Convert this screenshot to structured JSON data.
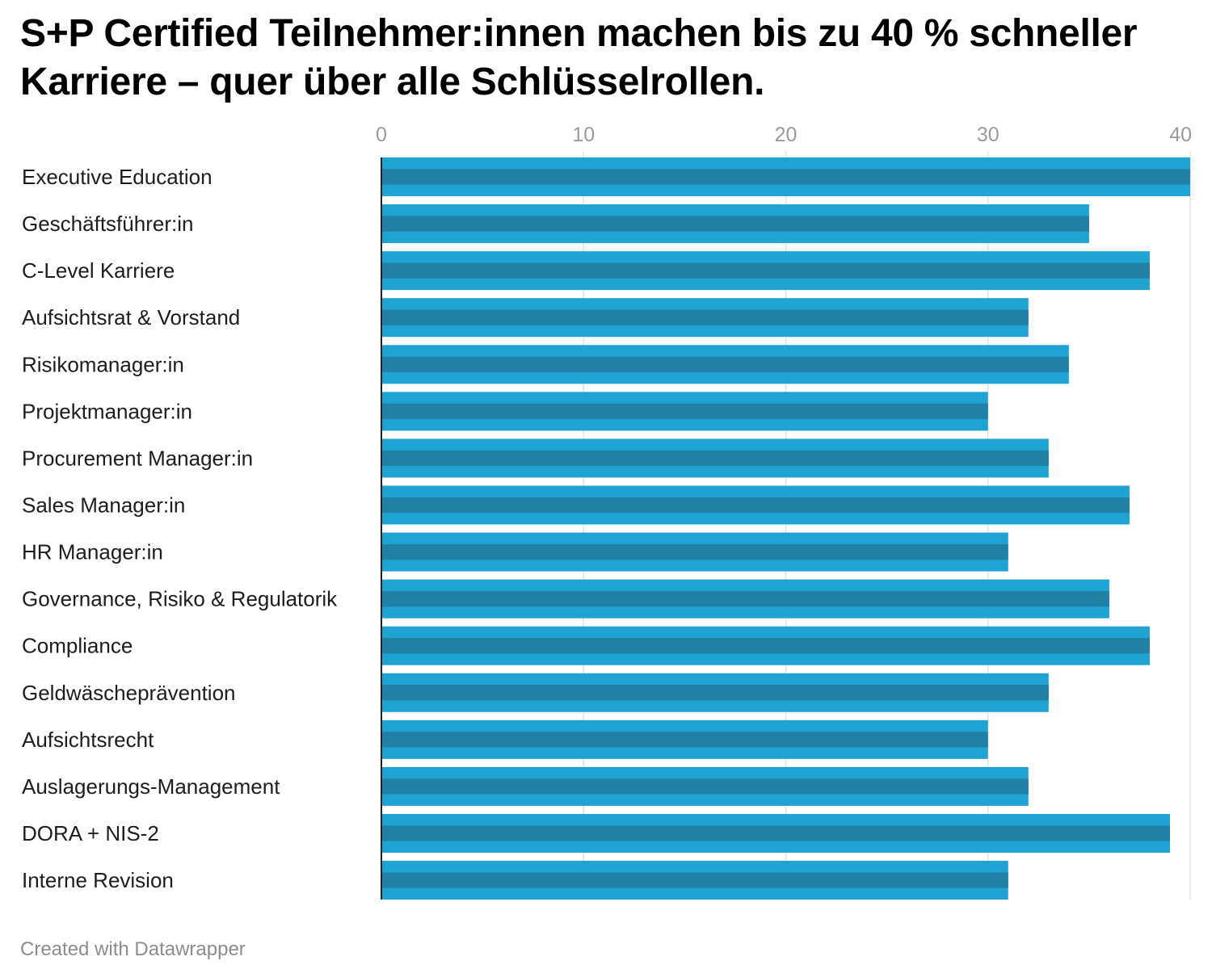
{
  "title": "S+P Certified Teilnehmer:innen machen bis zu 40 % schneller Karriere – quer über alle Schlüsselrollen.",
  "footer": "Created with Datawrapper",
  "colors": {
    "bar_main": "#1ea3d2",
    "bar_stripe": "#2180a6",
    "axis": "#1d1d1d",
    "grid": "#e3e3e3",
    "tick_label": "#9a9a9a",
    "category_label": "#1d1d1d"
  },
  "chart_data": {
    "type": "bar",
    "orientation": "horizontal",
    "title": "S+P Certified Teilnehmer:innen machen bis zu 40 % schneller Karriere – quer über alle Schlüsselrollen.",
    "xlabel": "",
    "ylabel": "",
    "xlim": [
      0,
      40
    ],
    "ticks": [
      "0",
      "10",
      "20",
      "30",
      "40"
    ],
    "tick_values": [
      0,
      10,
      20,
      30,
      40
    ],
    "tick_position": "top",
    "grid": true,
    "legend": "none",
    "categories": [
      "Executive Education",
      "Geschäftsführer:in",
      "C-Level Karriere",
      "Aufsichtsrat & Vorstand",
      "Risikomanager:in",
      "Projektmanager:in",
      "Procurement Manager:in",
      "Sales Manager:in",
      "HR Manager:in",
      "Governance, Risiko & Regulatorik",
      "Compliance",
      "Geldwäscheprävention",
      "Aufsichtsrecht",
      "Auslagerungs-Management",
      "DORA + NIS-2",
      "Interne Revision"
    ],
    "values": [
      40,
      35,
      38,
      32,
      34,
      30,
      33,
      37,
      31,
      36,
      38,
      33,
      30,
      32,
      39,
      31
    ]
  }
}
